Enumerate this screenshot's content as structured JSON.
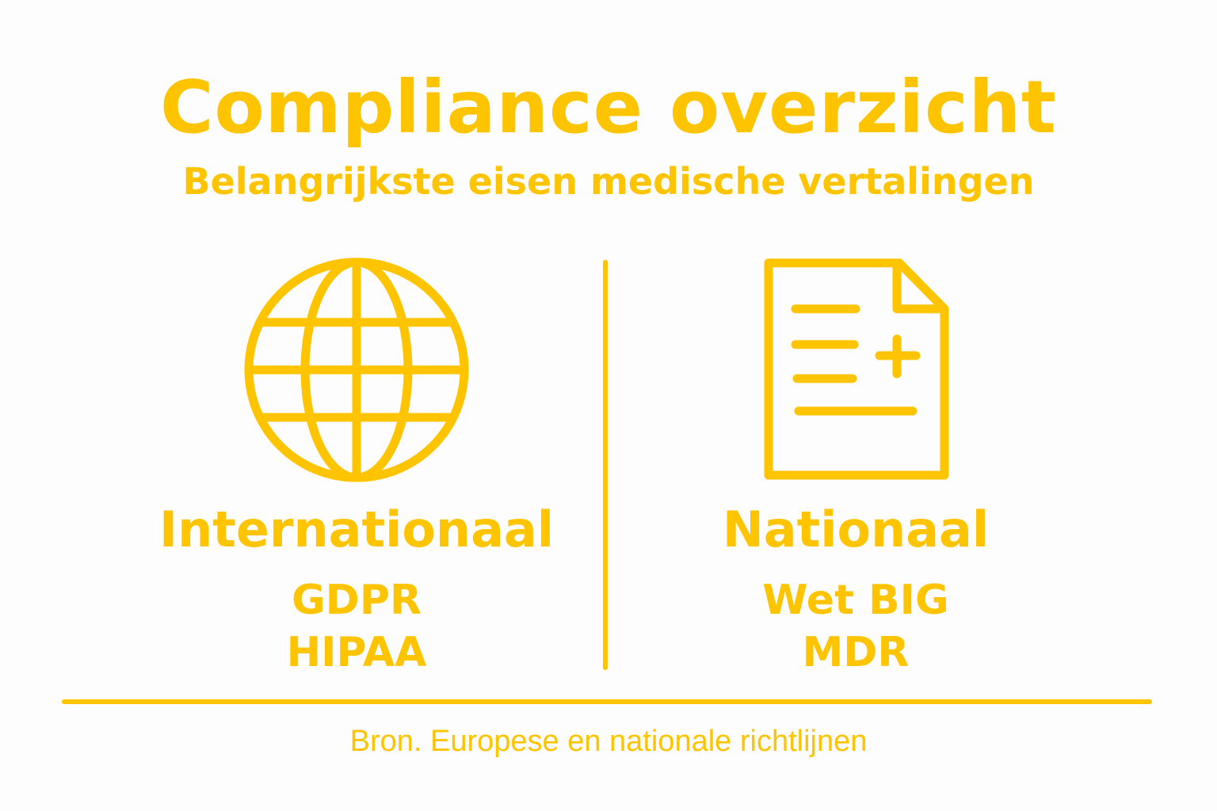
{
  "title": "Compliance overzicht",
  "subtitle": "Belangrijkste eisen medische vertalingen",
  "accent_color": "#ffc400",
  "left": {
    "icon": "globe-icon",
    "heading": "Internationaal",
    "items": [
      "GDPR",
      "HIPAA"
    ]
  },
  "right": {
    "icon": "medical-document-icon",
    "heading": "Nationaal",
    "items": [
      "Wet BIG",
      "MDR"
    ]
  },
  "footer": "Bron. Europese en nationale richtlijnen"
}
